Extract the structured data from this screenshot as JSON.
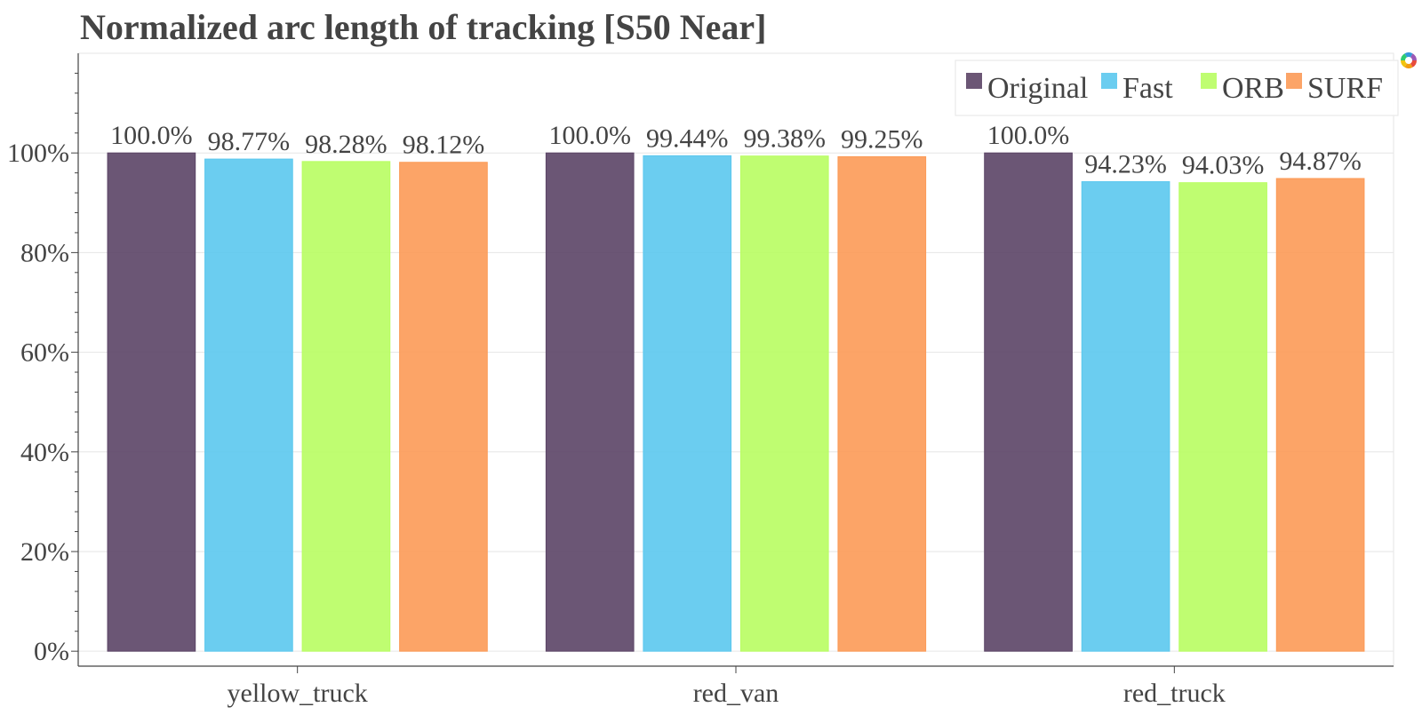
{
  "chart_data": {
    "type": "bar",
    "title": "Normalized arc length of tracking [S50 Near]",
    "xlabel": "",
    "ylabel": "",
    "categories": [
      "yellow_truck",
      "red_van",
      "red_truck"
    ],
    "series": [
      {
        "name": "Original",
        "color": "#5b4466",
        "values": [
          100.0,
          100.0,
          100.0
        ],
        "labels": [
          "100.0%",
          "100.0%",
          "100.0%"
        ]
      },
      {
        "name": "Fast",
        "color": "#5bc8ee",
        "values": [
          98.77,
          99.44,
          94.23
        ],
        "labels": [
          "98.77%",
          "99.44%",
          "94.23%"
        ]
      },
      {
        "name": "ORB",
        "color": "#b8fd62",
        "values": [
          98.28,
          99.38,
          94.03
        ],
        "labels": [
          "98.28%",
          "99.38%",
          "94.03%"
        ]
      },
      {
        "name": "SURF",
        "color": "#fc9a56",
        "values": [
          98.12,
          99.25,
          94.87
        ],
        "labels": [
          "98.12%",
          "99.25%",
          "94.87%"
        ]
      }
    ],
    "ylim": [
      -3,
      120
    ],
    "yticks": [
      0,
      20,
      40,
      60,
      80,
      100
    ],
    "ytick_labels": [
      "0%",
      "20%",
      "40%",
      "60%",
      "80%",
      "100%"
    ],
    "grid": true,
    "legend_position": "top-right",
    "toolbar_logo": "bokeh-logo-icon"
  }
}
